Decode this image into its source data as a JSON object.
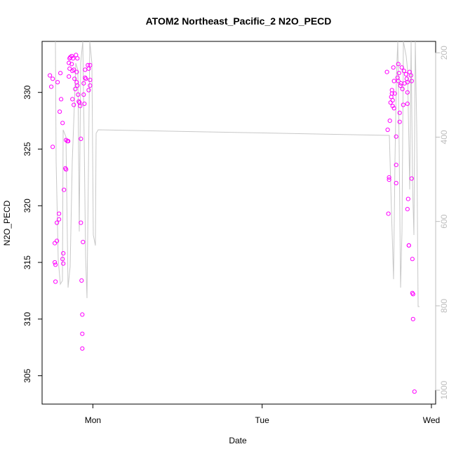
{
  "chart_data": {
    "type": "scatter",
    "title": "ATOM2 Northeast_Pacific_2 N2O_PECD",
    "xlabel": "Date",
    "ylabel": "N2O_PECD",
    "x_ticks": [
      "Mon",
      "Tue",
      "Wed"
    ],
    "x_tick_hours": [
      0,
      24,
      48
    ],
    "xlim_hours": [
      -7.2,
      48.6
    ],
    "ylim": [
      302.5,
      334.5
    ],
    "y_ticks": [
      305,
      310,
      315,
      320,
      325,
      330
    ],
    "y2_ticks": [
      200,
      400,
      600,
      800,
      1000
    ],
    "y2lim": [
      173,
      1033
    ],
    "grid": false,
    "colors": {
      "points": "#ff00ff",
      "altitude_line": "#c8c8c8",
      "secondary_axis": "#bdbdbd"
    },
    "series": [
      {
        "values": [
          [
            -6.1,
            331.5
          ],
          [
            -5.9,
            330.5
          ],
          [
            -5.7,
            331.2
          ],
          [
            -5.7,
            325.2
          ],
          [
            -5.4,
            316.7
          ],
          [
            -5.4,
            315
          ],
          [
            -5.3,
            314.8
          ],
          [
            -5.3,
            313.3
          ],
          [
            -5.1,
            316.9
          ],
          [
            -5.1,
            318.5
          ],
          [
            -5.0,
            330.9
          ],
          [
            -4.8,
            319.3
          ],
          [
            -4.8,
            318.8
          ],
          [
            -4.7,
            328.3
          ],
          [
            -4.6,
            331.7
          ],
          [
            -4.5,
            329.4
          ],
          [
            -4.3,
            327.3
          ],
          [
            -4.3,
            315.3
          ],
          [
            -4.2,
            315.8
          ],
          [
            -4.2,
            314.9
          ],
          [
            -4.1,
            321.4
          ],
          [
            -3.9,
            323.3
          ],
          [
            -3.8,
            323.2
          ],
          [
            -3.8,
            325.8
          ],
          [
            -3.6,
            325.7
          ],
          [
            -3.5,
            325.7
          ],
          [
            -3.4,
            332.6
          ],
          [
            -3.4,
            331.4
          ],
          [
            -3.3,
            333.0
          ],
          [
            -3.3,
            332.1
          ],
          [
            -3.2,
            333.1
          ],
          [
            -3.0,
            333.2
          ],
          [
            -3.0,
            332.5
          ],
          [
            -2.9,
            331.9
          ],
          [
            -2.9,
            329.4
          ],
          [
            -2.8,
            333.0
          ],
          [
            -2.7,
            332.0
          ],
          [
            -2.7,
            328.9
          ],
          [
            -2.6,
            331.2
          ],
          [
            -2.5,
            330.3
          ],
          [
            -2.4,
            333.3
          ],
          [
            -2.3,
            331.8
          ],
          [
            -2.3,
            330.9
          ],
          [
            -2.2,
            333.0
          ],
          [
            -2.2,
            330.6
          ],
          [
            -2.1,
            329.8
          ],
          [
            -2.0,
            329.2
          ],
          [
            -1.9,
            329.1
          ],
          [
            -1.8,
            328.8
          ],
          [
            -1.7,
            325.9
          ],
          [
            -1.7,
            318.5
          ],
          [
            -1.6,
            313.4
          ],
          [
            -1.5,
            310.4
          ],
          [
            -1.5,
            308.7
          ],
          [
            -1.5,
            307.4
          ],
          [
            -1.4,
            316.8
          ],
          [
            -1.3,
            329.8
          ],
          [
            -1.3,
            330.8
          ],
          [
            -1.2,
            329.0
          ],
          [
            -1.1,
            332.0
          ],
          [
            -1.1,
            331.3
          ],
          [
            -1.0,
            331.2
          ],
          [
            -0.7,
            332.4
          ],
          [
            -0.6,
            332.1
          ],
          [
            -0.6,
            330.2
          ],
          [
            -0.4,
            331.1
          ],
          [
            -0.4,
            332.4
          ],
          [
            -0.4,
            330.6
          ],
          [
            41.7,
            331.8
          ],
          [
            41.8,
            326.7
          ],
          [
            41.9,
            319.3
          ],
          [
            42.0,
            322.3
          ],
          [
            42.0,
            322.5
          ],
          [
            42.1,
            327.5
          ],
          [
            42.2,
            329.1
          ],
          [
            42.3,
            329.6
          ],
          [
            42.4,
            330.2
          ],
          [
            42.4,
            329.9
          ],
          [
            42.5,
            328.8
          ],
          [
            42.5,
            329.3
          ],
          [
            42.6,
            332.2
          ],
          [
            42.7,
            331.0
          ],
          [
            42.7,
            328.6
          ],
          [
            42.8,
            329.9
          ],
          [
            43.0,
            326.1
          ],
          [
            43.0,
            323.6
          ],
          [
            43.0,
            322.0
          ],
          [
            43.2,
            331.3
          ],
          [
            43.3,
            332.5
          ],
          [
            43.3,
            331.0
          ],
          [
            43.4,
            331.7
          ],
          [
            43.5,
            328.2
          ],
          [
            43.5,
            327.4
          ],
          [
            43.6,
            330.6
          ],
          [
            43.7,
            330.8
          ],
          [
            43.8,
            332.2
          ],
          [
            43.9,
            330.3
          ],
          [
            44.0,
            328.9
          ],
          [
            44.1,
            331.9
          ],
          [
            44.2,
            330.8
          ],
          [
            44.4,
            331.6
          ],
          [
            44.5,
            331.2
          ],
          [
            44.6,
            329.0
          ],
          [
            44.6,
            330.0
          ],
          [
            44.6,
            330.9
          ],
          [
            44.6,
            319.7
          ],
          [
            44.7,
            320.6
          ],
          [
            44.8,
            316.5
          ],
          [
            44.8,
            316.5
          ],
          [
            44.9,
            331.8
          ],
          [
            45.1,
            331.5
          ],
          [
            45.2,
            331.0
          ],
          [
            45.2,
            322.4
          ],
          [
            45.3,
            315.3
          ],
          [
            45.3,
            312.3
          ],
          [
            45.4,
            312.2
          ],
          [
            45.4,
            310.0
          ],
          [
            45.6,
            303.6
          ]
        ]
      }
    ]
  }
}
